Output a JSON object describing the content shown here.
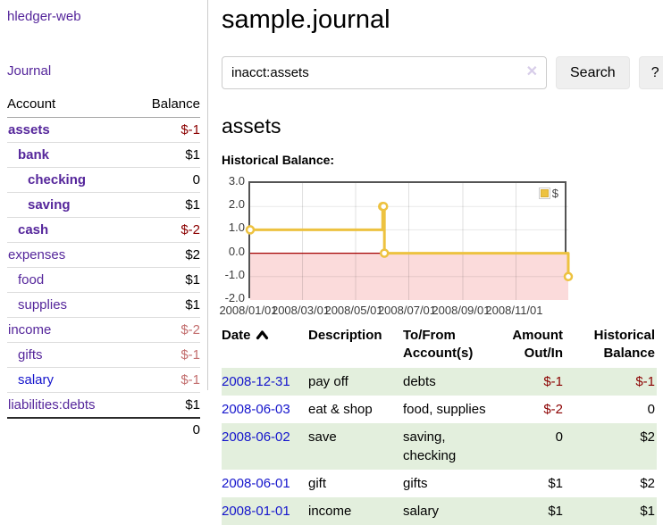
{
  "app": {
    "title": "hledger-web"
  },
  "sidebar": {
    "nav_journal": "Journal",
    "accounts_table": {
      "headers": [
        "Account",
        "Balance"
      ],
      "rows": [
        {
          "account": "assets",
          "balance": "$-1",
          "depth": 1,
          "bold": true,
          "balance_color": "neg",
          "link_color": "purple"
        },
        {
          "account": "bank",
          "balance": "$1",
          "depth": 2,
          "bold": true,
          "balance_color": "pos",
          "link_color": "purple"
        },
        {
          "account": "checking",
          "balance": "0",
          "depth": 3,
          "bold": true,
          "balance_color": "pos",
          "link_color": "purple"
        },
        {
          "account": "saving",
          "balance": "$1",
          "depth": 3,
          "bold": true,
          "balance_color": "pos",
          "link_color": "purple"
        },
        {
          "account": "cash",
          "balance": "$-2",
          "depth": 2,
          "bold": true,
          "balance_color": "neg",
          "link_color": "purple"
        },
        {
          "account": "expenses",
          "balance": "$2",
          "depth": 1,
          "bold": false,
          "balance_color": "pos",
          "link_color": "purple"
        },
        {
          "account": "food",
          "balance": "$1",
          "depth": 2,
          "bold": false,
          "balance_color": "pos",
          "link_color": "purple"
        },
        {
          "account": "supplies",
          "balance": "$1",
          "depth": 2,
          "bold": false,
          "balance_color": "pos",
          "link_color": "purple"
        },
        {
          "account": "income",
          "balance": "$-2",
          "depth": 1,
          "bold": false,
          "balance_color": "neg-muted",
          "link_color": "purple"
        },
        {
          "account": "gifts",
          "balance": "$-1",
          "depth": 2,
          "bold": false,
          "balance_color": "neg-muted",
          "link_color": "purple"
        },
        {
          "account": "salary",
          "balance": "$-1",
          "depth": 2,
          "bold": false,
          "balance_color": "neg-muted",
          "link_color": "blue"
        },
        {
          "account": "liabilities:debts",
          "balance": "$1",
          "depth": 1,
          "bold": false,
          "balance_color": "pos",
          "link_color": "purple"
        }
      ],
      "total": "0"
    }
  },
  "header": {
    "title": "sample.journal"
  },
  "search": {
    "value": "inacct:assets",
    "clear_icon": "✕",
    "button_label": "Search",
    "help_label": "?"
  },
  "account_page": {
    "title": "assets",
    "chart_label": "Historical Balance:"
  },
  "chart_data": {
    "type": "line",
    "title": "Historical Balance:",
    "step": true,
    "series": [
      {
        "name": "$",
        "color": "#edc240",
        "points": [
          [
            "2008-01-01",
            1
          ],
          [
            "2008-06-01",
            2
          ],
          [
            "2008-06-02",
            2
          ],
          [
            "2008-06-03",
            0
          ],
          [
            "2008-12-31",
            -1
          ]
        ]
      }
    ],
    "x_domain": [
      "2008-01-01",
      "2008-12-31"
    ],
    "x_ticks": [
      "2008/01/01",
      "2008/03/01",
      "2008/05/01",
      "2008/07/01",
      "2008/09/01",
      "2008/11/01"
    ],
    "y_ticks": [
      "3.0",
      "2.0",
      "1.0",
      "0.0",
      "-1.0",
      "-2.0"
    ],
    "ylim": [
      -2,
      3
    ],
    "grid": true,
    "negative_region": {
      "below": 0,
      "fill": "#fbdbdb",
      "line_color": "#a40000"
    },
    "legend": {
      "label": "$",
      "position": "top-right"
    }
  },
  "register_table": {
    "headers": {
      "date": "Date",
      "description": "Description",
      "tofrom": "To/From Account(s)",
      "amount": "Amount Out/In",
      "balance": "Historical Balance"
    },
    "rows": [
      {
        "date": "2008-12-31",
        "description": "pay off",
        "tofrom": "debts",
        "amount": "$-1",
        "balance": "$-1"
      },
      {
        "date": "2008-06-03",
        "description": "eat & shop",
        "tofrom": "food, supplies",
        "amount": "$-2",
        "balance": "0"
      },
      {
        "date": "2008-06-02",
        "description": "save",
        "tofrom": "saving, checking",
        "amount": "0",
        "balance": "$2"
      },
      {
        "date": "2008-06-01",
        "description": "gift",
        "tofrom": "gifts",
        "amount": "$1",
        "balance": "$2"
      },
      {
        "date": "2008-01-01",
        "description": "income",
        "tofrom": "salary",
        "amount": "$1",
        "balance": "$1"
      }
    ]
  },
  "colors": {
    "link_purple": "#55269b",
    "link_blue": "#1414cc",
    "negative": "#8b0000",
    "negative_muted": "#c36f6f",
    "row_shade_green": "#e3efdd",
    "chart_line": "#edc240",
    "chart_border": "#545454"
  }
}
